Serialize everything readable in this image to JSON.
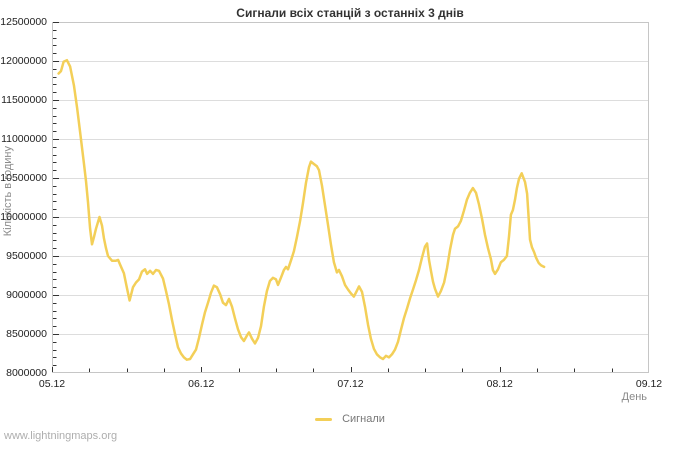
{
  "watermark": "www.lightningmaps.org",
  "colors": {
    "series_line": "#F3CF58",
    "grid": "#DDDDDD",
    "plot_border": "#C6C6C6",
    "tick_mark": "#333333",
    "tick_label": "#222222",
    "title_text": "#333333",
    "muted_text": "#8A8A8A",
    "watermark_text": "#AEAEAE",
    "background": "#FFFFFF"
  },
  "chart_data": {
    "type": "line",
    "title": "Сигнали всіх станцій з останніх 3 днів",
    "xlabel": "День",
    "ylabel": "Кількість в годину",
    "legend": [
      "Сигнали"
    ],
    "legend_position": "bottom-center",
    "grid": "horizontal-major-only",
    "xlim": [
      5,
      9
    ],
    "ylim": [
      8000000,
      12500000
    ],
    "x_tick_labels": [
      "05.12",
      "06.12",
      "07.12",
      "08.12",
      "09.12"
    ],
    "x_minor_tick_step_days": 0.25,
    "y_tick_labels": [
      "12500000",
      "12000000",
      "11500000",
      "11000000",
      "10500000",
      "10000000",
      "9500000",
      "9000000",
      "8500000",
      "8000000"
    ],
    "y_major_tick_step": 500000,
    "y_minor_tick_step": 100000,
    "series": [
      {
        "name": "Сигнали",
        "color": "#F3CF58",
        "x_unit_note": "day of December (fractional)",
        "points": [
          [
            5.044,
            11840000
          ],
          [
            5.06,
            11870000
          ],
          [
            5.078,
            11990000
          ],
          [
            5.1,
            12010000
          ],
          [
            5.121,
            11930000
          ],
          [
            5.147,
            11690000
          ],
          [
            5.168,
            11400000
          ],
          [
            5.188,
            11090000
          ],
          [
            5.214,
            10690000
          ],
          [
            5.228,
            10460000
          ],
          [
            5.241,
            10190000
          ],
          [
            5.255,
            9850000
          ],
          [
            5.268,
            9650000
          ],
          [
            5.281,
            9740000
          ],
          [
            5.295,
            9850000
          ],
          [
            5.318,
            10000000
          ],
          [
            5.335,
            9890000
          ],
          [
            5.348,
            9730000
          ],
          [
            5.362,
            9600000
          ],
          [
            5.375,
            9500000
          ],
          [
            5.402,
            9440000
          ],
          [
            5.429,
            9440000
          ],
          [
            5.443,
            9450000
          ],
          [
            5.456,
            9390000
          ],
          [
            5.482,
            9280000
          ],
          [
            5.503,
            9080000
          ],
          [
            5.52,
            8930000
          ],
          [
            5.543,
            9100000
          ],
          [
            5.563,
            9160000
          ],
          [
            5.583,
            9200000
          ],
          [
            5.603,
            9300000
          ],
          [
            5.623,
            9330000
          ],
          [
            5.637,
            9270000
          ],
          [
            5.657,
            9310000
          ],
          [
            5.677,
            9270000
          ],
          [
            5.697,
            9320000
          ],
          [
            5.717,
            9310000
          ],
          [
            5.73,
            9260000
          ],
          [
            5.744,
            9210000
          ],
          [
            5.764,
            9050000
          ],
          [
            5.784,
            8880000
          ],
          [
            5.804,
            8680000
          ],
          [
            5.824,
            8500000
          ],
          [
            5.844,
            8330000
          ],
          [
            5.864,
            8250000
          ],
          [
            5.884,
            8200000
          ],
          [
            5.904,
            8170000
          ],
          [
            5.925,
            8180000
          ],
          [
            5.945,
            8240000
          ],
          [
            5.965,
            8300000
          ],
          [
            5.985,
            8450000
          ],
          [
            6.005,
            8620000
          ],
          [
            6.025,
            8780000
          ],
          [
            6.045,
            8900000
          ],
          [
            6.065,
            9030000
          ],
          [
            6.085,
            9120000
          ],
          [
            6.105,
            9100000
          ],
          [
            6.126,
            9010000
          ],
          [
            6.146,
            8900000
          ],
          [
            6.166,
            8870000
          ],
          [
            6.186,
            8950000
          ],
          [
            6.206,
            8850000
          ],
          [
            6.226,
            8700000
          ],
          [
            6.246,
            8560000
          ],
          [
            6.266,
            8460000
          ],
          [
            6.286,
            8410000
          ],
          [
            6.306,
            8480000
          ],
          [
            6.32,
            8520000
          ],
          [
            6.34,
            8440000
          ],
          [
            6.36,
            8380000
          ],
          [
            6.38,
            8450000
          ],
          [
            6.4,
            8600000
          ],
          [
            6.42,
            8850000
          ],
          [
            6.44,
            9050000
          ],
          [
            6.46,
            9180000
          ],
          [
            6.481,
            9220000
          ],
          [
            6.501,
            9200000
          ],
          [
            6.514,
            9130000
          ],
          [
            6.534,
            9220000
          ],
          [
            6.554,
            9320000
          ],
          [
            6.568,
            9360000
          ],
          [
            6.581,
            9330000
          ],
          [
            6.601,
            9440000
          ],
          [
            6.621,
            9560000
          ],
          [
            6.641,
            9740000
          ],
          [
            6.662,
            9950000
          ],
          [
            6.682,
            10180000
          ],
          [
            6.702,
            10440000
          ],
          [
            6.722,
            10640000
          ],
          [
            6.735,
            10710000
          ],
          [
            6.755,
            10680000
          ],
          [
            6.775,
            10650000
          ],
          [
            6.789,
            10600000
          ],
          [
            6.809,
            10400000
          ],
          [
            6.829,
            10150000
          ],
          [
            6.849,
            9900000
          ],
          [
            6.869,
            9650000
          ],
          [
            6.889,
            9420000
          ],
          [
            6.909,
            9290000
          ],
          [
            6.923,
            9320000
          ],
          [
            6.943,
            9240000
          ],
          [
            6.963,
            9130000
          ],
          [
            6.983,
            9070000
          ],
          [
            7.003,
            9020000
          ],
          [
            7.023,
            8980000
          ],
          [
            7.044,
            9060000
          ],
          [
            7.057,
            9110000
          ],
          [
            7.077,
            9040000
          ],
          [
            7.097,
            8850000
          ],
          [
            7.117,
            8620000
          ],
          [
            7.137,
            8440000
          ],
          [
            7.157,
            8310000
          ],
          [
            7.177,
            8240000
          ],
          [
            7.198,
            8200000
          ],
          [
            7.218,
            8180000
          ],
          [
            7.238,
            8220000
          ],
          [
            7.258,
            8200000
          ],
          [
            7.278,
            8240000
          ],
          [
            7.298,
            8300000
          ],
          [
            7.318,
            8400000
          ],
          [
            7.338,
            8550000
          ],
          [
            7.358,
            8700000
          ],
          [
            7.379,
            8830000
          ],
          [
            7.399,
            8960000
          ],
          [
            7.419,
            9070000
          ],
          [
            7.439,
            9190000
          ],
          [
            7.459,
            9320000
          ],
          [
            7.479,
            9480000
          ],
          [
            7.499,
            9620000
          ],
          [
            7.513,
            9660000
          ],
          [
            7.526,
            9450000
          ],
          [
            7.54,
            9300000
          ],
          [
            7.553,
            9170000
          ],
          [
            7.566,
            9080000
          ],
          [
            7.586,
            8980000
          ],
          [
            7.606,
            9050000
          ],
          [
            7.627,
            9160000
          ],
          [
            7.647,
            9350000
          ],
          [
            7.667,
            9580000
          ],
          [
            7.687,
            9770000
          ],
          [
            7.7,
            9850000
          ],
          [
            7.72,
            9880000
          ],
          [
            7.74,
            9950000
          ],
          [
            7.76,
            10080000
          ],
          [
            7.78,
            10220000
          ],
          [
            7.8,
            10310000
          ],
          [
            7.82,
            10370000
          ],
          [
            7.841,
            10310000
          ],
          [
            7.861,
            10160000
          ],
          [
            7.881,
            9980000
          ],
          [
            7.901,
            9770000
          ],
          [
            7.921,
            9600000
          ],
          [
            7.941,
            9460000
          ],
          [
            7.954,
            9320000
          ],
          [
            7.968,
            9270000
          ],
          [
            7.988,
            9330000
          ],
          [
            8.008,
            9420000
          ],
          [
            8.028,
            9450000
          ],
          [
            8.048,
            9500000
          ],
          [
            8.062,
            9750000
          ],
          [
            8.075,
            10030000
          ],
          [
            8.088,
            10090000
          ],
          [
            8.102,
            10220000
          ],
          [
            8.115,
            10370000
          ],
          [
            8.129,
            10490000
          ],
          [
            8.147,
            10560000
          ],
          [
            8.169,
            10450000
          ],
          [
            8.183,
            10300000
          ],
          [
            8.193,
            10000000
          ],
          [
            8.203,
            9710000
          ],
          [
            8.216,
            9610000
          ],
          [
            8.23,
            9550000
          ],
          [
            8.243,
            9480000
          ],
          [
            8.261,
            9410000
          ],
          [
            8.277,
            9380000
          ],
          [
            8.297,
            9360000
          ]
        ]
      }
    ]
  }
}
